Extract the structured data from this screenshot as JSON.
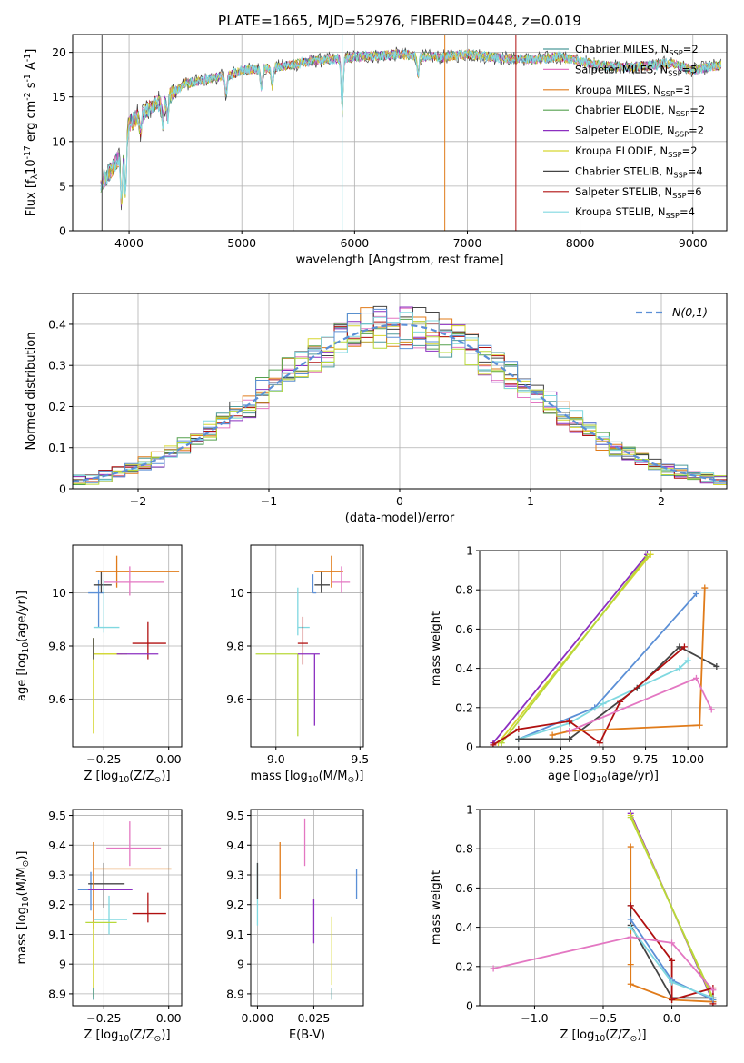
{
  "figure": {
    "title": "PLATE=1665, MJD=52976, FIBERID=0448, z=0.019"
  },
  "models": [
    {
      "name": "Chabrier MILES, N$_{SSP}$=2",
      "color": "#4e9a9a"
    },
    {
      "name": "Salpeter MILES, N$_{SSP}$=5",
      "color": "#e377c2"
    },
    {
      "name": "Kroupa MILES, N$_{SSP}$=3",
      "color": "#e07b1a"
    },
    {
      "name": "Chabrier ELODIE, N$_{SSP}$=2",
      "color": "#55a14f"
    },
    {
      "name": "Salpeter ELODIE, N$_{SSP}$=2",
      "color": "#8c2fc0"
    },
    {
      "name": "Kroupa ELODIE, N$_{SSP}$=2",
      "color": "#d6d630"
    },
    {
      "name": "Chabrier STELIB, N$_{SSP}$=4",
      "color": "#444444"
    },
    {
      "name": "Salpeter STELIB, N$_{SSP}$=6",
      "color": "#b01010"
    },
    {
      "name": "Kroupa STELIB, N$_{SSP}$=4",
      "color": "#80d8e0"
    }
  ],
  "chart_data": [
    {
      "id": "spectrum",
      "type": "line",
      "xlabel": "wavelength [Angstrom, rest frame]",
      "ylabel": "Flux [f$_\\lambda$10$^{-17}$ erg cm$^{-2}$ s$^{-1}$ A$^{-1}$]",
      "xlim": [
        3500,
        9300
      ],
      "ylim": [
        0,
        22
      ],
      "xticks": [
        4000,
        5000,
        6000,
        7000,
        8000,
        9000
      ],
      "yticks": [
        0,
        5,
        10,
        15,
        20
      ],
      "legend": "top-right",
      "continuum": {
        "x": [
          3750,
          3800,
          3900,
          3950,
          4000,
          4100,
          4200,
          4300,
          4400,
          4500,
          4700,
          4900,
          5000,
          5200,
          5400,
          5600,
          5800,
          6000,
          6200,
          6400,
          6600,
          6800,
          7000,
          7200,
          7400,
          7600,
          7800,
          8000,
          8200,
          8400,
          8600,
          8800,
          9000,
          9200
        ],
        "y": [
          5.0,
          6.0,
          8.0,
          9.5,
          12.0,
          13.0,
          14.0,
          14.5,
          15.5,
          16.5,
          17.0,
          17.5,
          18.0,
          18.2,
          18.5,
          19.0,
          19.2,
          19.5,
          19.6,
          19.8,
          19.5,
          19.5,
          19.8,
          19.5,
          19.3,
          19.2,
          19.5,
          19.0,
          18.5,
          18.3,
          18.5,
          18.8,
          18.0,
          18.5
        ]
      },
      "absorption_lines": [
        3934,
        3969,
        4102,
        4300,
        4340,
        4861,
        5175,
        5270,
        5890,
        6563
      ]
    },
    {
      "id": "residuals",
      "type": "bar",
      "xlabel": "(data-model)/error",
      "ylabel": "Normed distribution",
      "xlim": [
        -2.5,
        2.5
      ],
      "ylim": [
        0,
        0.475
      ],
      "xticks": [
        -2,
        -1,
        0,
        1,
        2
      ],
      "yticks": [
        0.0,
        0.1,
        0.2,
        0.3,
        0.4
      ],
      "bin_width": 0.1,
      "curve_label": "$\\mathcal{N}(0,1)$",
      "curve_color": "#5b8fd6",
      "hist_colors": [
        "#4e9a9a",
        "#e377c2",
        "#e07b1a",
        "#55a14f",
        "#8c2fc0",
        "#d6d630",
        "#444444",
        "#b01010",
        "#80d8e0",
        "#5b8fd6",
        "#b8d83a"
      ]
    },
    {
      "id": "z-age",
      "type": "scatter",
      "xlabel": "Z [log$_{10}$($Z/Z_\\odot$)]",
      "ylabel": "age  [log$_{10}$($age/yr$)]",
      "xlim": [
        -0.37,
        0.05
      ],
      "ylim": [
        9.42,
        10.18
      ],
      "xticks": [
        -0.25,
        0.0
      ],
      "xticklabels": [
        "−0.25",
        "0.00"
      ],
      "yticks": [
        9.6,
        9.8,
        10.0
      ],
      "points": [
        {
          "x": -0.27,
          "y": 10.0,
          "xerr": [
            0.04,
            0.02
          ],
          "yerr": [
            0.13,
            0.05
          ],
          "color": "#5b8fd6"
        },
        {
          "x": -0.26,
          "y": 10.03,
          "xerr": [
            0.03,
            0.04
          ],
          "yerr": [
            0.03,
            0.05
          ],
          "color": "#444444"
        },
        {
          "x": -0.2,
          "y": 10.08,
          "xerr": [
            0.08,
            0.24
          ],
          "yerr": [
            0.06,
            0.06
          ],
          "color": "#e07b1a"
        },
        {
          "x": -0.15,
          "y": 10.04,
          "xerr": [
            0.1,
            0.13
          ],
          "yerr": [
            0.05,
            0.06
          ],
          "color": "#e377c2"
        },
        {
          "x": -0.25,
          "y": 9.87,
          "xerr": [
            0.04,
            0.06
          ],
          "yerr": [
            0.02,
            0.18
          ],
          "color": "#80d8e0"
        },
        {
          "x": -0.08,
          "y": 9.81,
          "xerr": [
            0.06,
            0.07
          ],
          "yerr": [
            0.06,
            0.08
          ],
          "color": "#b01010"
        },
        {
          "x": -0.25,
          "y": 9.77,
          "xerr": [
            0.04,
            0.09
          ],
          "yerr": [
            0.0,
            0.0
          ],
          "color": "#b8d83a"
        },
        {
          "x": -0.25,
          "y": 9.77,
          "xerr": [
            0.04,
            0.07
          ],
          "yerr": [
            0.0,
            0.0
          ],
          "color": "#d6d630"
        },
        {
          "x": -0.29,
          "y": 9.78,
          "xerr": [
            0.0,
            0.0
          ],
          "yerr": [
            0.31,
            0.05
          ],
          "color": "#d6d630"
        },
        {
          "x": -0.29,
          "y": 9.75,
          "xerr": [
            0.0,
            0.0
          ],
          "yerr": [
            0.0,
            0.08
          ],
          "color": "#444444"
        },
        {
          "x": -0.1,
          "y": 9.77,
          "xerr": [
            0.1,
            0.06
          ],
          "yerr": [
            0.0,
            0.0
          ],
          "color": "#8c2fc0"
        }
      ]
    },
    {
      "id": "mass-age",
      "type": "scatter",
      "xlabel": "mass [log$_{10}$($M/M_\\odot$)]",
      "ylabel": "",
      "xlim": [
        8.85,
        9.52
      ],
      "ylim": [
        9.42,
        10.18
      ],
      "xticks": [
        9.0,
        9.5
      ],
      "xticklabels": [
        "9.0",
        "9.5"
      ],
      "yticks": [
        9.6,
        9.8,
        10.0
      ],
      "points": [
        {
          "x": 9.22,
          "y": 10.0,
          "xerr": [
            0.0,
            0.02
          ],
          "yerr": [
            0.0,
            0.07
          ],
          "color": "#5b8fd6"
        },
        {
          "x": 9.27,
          "y": 10.03,
          "xerr": [
            0.04,
            0.05
          ],
          "yerr": [
            0.03,
            0.05
          ],
          "color": "#444444"
        },
        {
          "x": 9.33,
          "y": 10.08,
          "xerr": [
            0.1,
            0.07
          ],
          "yerr": [
            0.06,
            0.06
          ],
          "color": "#e07b1a"
        },
        {
          "x": 9.39,
          "y": 10.04,
          "xerr": [
            0.06,
            0.05
          ],
          "yerr": [
            0.04,
            0.06
          ],
          "color": "#e377c2"
        },
        {
          "x": 9.13,
          "y": 9.87,
          "xerr": [
            0.0,
            0.07
          ],
          "yerr": [
            0.03,
            0.15
          ],
          "color": "#80d8e0"
        },
        {
          "x": 9.16,
          "y": 9.81,
          "xerr": [
            0.03,
            0.03
          ],
          "yerr": [
            0.08,
            0.1
          ],
          "color": "#b01010"
        },
        {
          "x": 9.13,
          "y": 9.77,
          "xerr": [
            0.25,
            0.0
          ],
          "yerr": [
            0.31,
            0.0
          ],
          "color": "#b8d83a"
        },
        {
          "x": 9.23,
          "y": 9.77,
          "xerr": [
            0.1,
            0.03
          ],
          "yerr": [
            0.27,
            0.0
          ],
          "color": "#8c2fc0"
        }
      ]
    },
    {
      "id": "age-weight",
      "type": "line",
      "xlabel": "age  [log$_{10}$($age/yr$)]",
      "ylabel": "mass weight",
      "xlim": [
        8.77,
        10.23
      ],
      "ylim": [
        0.0,
        1.0
      ],
      "xticks": [
        9.0,
        9.25,
        9.5,
        9.75,
        10.0
      ],
      "xticklabels": [
        "9.00",
        "9.25",
        "9.50",
        "9.75",
        "10.00"
      ],
      "yticks": [
        0.0,
        0.2,
        0.4,
        0.6,
        0.8,
        1.0
      ],
      "grid": true,
      "series": [
        {
          "color": "#8c2fc0",
          "x": [
            8.85,
            9.76
          ],
          "y": [
            0.02,
            0.98
          ]
        },
        {
          "color": "#d6d630",
          "x": [
            8.88,
            9.78
          ],
          "y": [
            0.02,
            0.98
          ]
        },
        {
          "color": "#b8d83a",
          "x": [
            8.9,
            9.76
          ],
          "y": [
            0.02,
            0.97
          ]
        },
        {
          "color": "#5b8fd6",
          "x": [
            9.0,
            9.45,
            10.05
          ],
          "y": [
            0.04,
            0.2,
            0.78
          ]
        },
        {
          "color": "#80d8e0",
          "x": [
            9.0,
            9.3,
            9.5,
            9.95,
            10.0
          ],
          "y": [
            0.04,
            0.12,
            0.22,
            0.4,
            0.44
          ]
        },
        {
          "color": "#444444",
          "x": [
            9.0,
            9.3,
            9.7,
            9.95,
            10.17
          ],
          "y": [
            0.04,
            0.04,
            0.3,
            0.51,
            0.41
          ]
        },
        {
          "color": "#b01010",
          "x": [
            8.85,
            9.0,
            9.3,
            9.48,
            9.6,
            9.98
          ],
          "y": [
            0.01,
            0.09,
            0.13,
            0.02,
            0.23,
            0.51
          ]
        },
        {
          "color": "#e07b1a",
          "x": [
            9.2,
            9.3,
            10.07,
            10.1
          ],
          "y": [
            0.06,
            0.08,
            0.11,
            0.81
          ]
        },
        {
          "color": "#e377c2",
          "x": [
            9.3,
            10.05,
            10.14
          ],
          "y": [
            0.08,
            0.35,
            0.19
          ]
        }
      ]
    },
    {
      "id": "z-mass",
      "type": "scatter",
      "xlabel": "Z [log$_{10}$($Z/Z_\\odot$)]",
      "ylabel": "mass [log$_{10}$($M/M_\\odot$)]",
      "xlim": [
        -0.37,
        0.05
      ],
      "ylim": [
        8.86,
        9.52
      ],
      "xticks": [
        -0.25,
        0.0
      ],
      "xticklabels": [
        "−0.25",
        "0.00"
      ],
      "yticks": [
        8.9,
        9.0,
        9.1,
        9.2,
        9.3,
        9.4,
        9.5
      ],
      "points": [
        {
          "x": -0.3,
          "y": 9.25,
          "xerr": [
            0.05,
            0.1
          ],
          "yerr": [
            0.07,
            0.06
          ],
          "color": "#5b8fd6"
        },
        {
          "x": -0.25,
          "y": 9.27,
          "xerr": [
            0.06,
            0.08
          ],
          "yerr": [
            0.08,
            0.07
          ],
          "color": "#444444"
        },
        {
          "x": -0.29,
          "y": 9.32,
          "xerr": [
            0.0,
            0.3
          ],
          "yerr": [
            0.2,
            0.09
          ],
          "color": "#e07b1a"
        },
        {
          "x": -0.15,
          "y": 9.39,
          "xerr": [
            0.09,
            0.12
          ],
          "yerr": [
            0.06,
            0.09
          ],
          "color": "#e377c2"
        },
        {
          "x": -0.24,
          "y": 9.25,
          "xerr": [
            0.07,
            0.1
          ],
          "yerr": [
            0.0,
            0.0
          ],
          "color": "#8c2fc0"
        },
        {
          "x": -0.23,
          "y": 9.15,
          "xerr": [
            0.06,
            0.07
          ],
          "yerr": [
            0.05,
            0.08
          ],
          "color": "#80d8e0"
        },
        {
          "x": -0.08,
          "y": 9.17,
          "xerr": [
            0.06,
            0.07
          ],
          "yerr": [
            0.03,
            0.07
          ],
          "color": "#b01010"
        },
        {
          "x": -0.25,
          "y": 9.14,
          "xerr": [
            0.07,
            0.05
          ],
          "yerr": [
            0.0,
            0.0
          ],
          "color": "#b8d83a"
        },
        {
          "x": -0.29,
          "y": 9.14,
          "xerr": [
            0.0,
            0.0
          ],
          "yerr": [
            0.25,
            0.0
          ],
          "color": "#d6d630"
        },
        {
          "x": -0.29,
          "y": 8.92,
          "xerr": [
            0.0,
            0.0
          ],
          "yerr": [
            0.04,
            0.0
          ],
          "color": "#4e9a9a"
        }
      ]
    },
    {
      "id": "ebv-mass",
      "type": "scatter",
      "xlabel": "E(B-V)",
      "ylabel": "",
      "xlim": [
        -0.003,
        0.047
      ],
      "ylim": [
        8.86,
        9.52
      ],
      "xticks": [
        0.0,
        0.025
      ],
      "xticklabels": [
        "0.000",
        "0.025"
      ],
      "yticks": [
        8.9,
        9.0,
        9.1,
        9.2,
        9.3,
        9.4,
        9.5
      ],
      "points": [
        {
          "x": 0.0,
          "y": 9.25,
          "xerr": [
            0.0,
            0.0
          ],
          "yerr": [
            0.12,
            0.09
          ],
          "color": "#80d8e0"
        },
        {
          "x": 0.0,
          "y": 9.27,
          "xerr": [
            0.0,
            0.0
          ],
          "yerr": [
            0.05,
            0.07
          ],
          "color": "#444444"
        },
        {
          "x": 0.01,
          "y": 9.32,
          "xerr": [
            0.0,
            0.0
          ],
          "yerr": [
            0.1,
            0.09
          ],
          "color": "#e07b1a"
        },
        {
          "x": 0.021,
          "y": 9.41,
          "xerr": [
            0.0,
            0.0
          ],
          "yerr": [
            0.08,
            0.08
          ],
          "color": "#e377c2"
        },
        {
          "x": 0.025,
          "y": 9.15,
          "xerr": [
            0.0,
            0.0
          ],
          "yerr": [
            0.08,
            0.07
          ],
          "color": "#8c2fc0"
        },
        {
          "x": 0.033,
          "y": 9.1,
          "xerr": [
            0.0,
            0.0
          ],
          "yerr": [
            0.17,
            0.06
          ],
          "color": "#d6d630"
        },
        {
          "x": 0.033,
          "y": 8.92,
          "xerr": [
            0.0,
            0.0
          ],
          "yerr": [
            0.04,
            0.0
          ],
          "color": "#4e9a9a"
        },
        {
          "x": 0.044,
          "y": 9.27,
          "xerr": [
            0.0,
            0.0
          ],
          "yerr": [
            0.05,
            0.05
          ],
          "color": "#5b8fd6"
        }
      ]
    },
    {
      "id": "z-weight",
      "type": "line",
      "xlabel": "Z [log$_{10}$($Z/Z_\\odot$)]",
      "ylabel": "mass weight",
      "xlim": [
        -1.4,
        0.4
      ],
      "ylim": [
        0.0,
        1.0
      ],
      "xticks": [
        -1.0,
        -0.5,
        0.0
      ],
      "xticklabels": [
        "−1.0",
        "−0.5",
        "0.0"
      ],
      "yticks": [
        0.0,
        0.2,
        0.4,
        0.6,
        0.8,
        1.0
      ],
      "grid": true,
      "series": [
        {
          "color": "#8c2fc0",
          "x": [
            -0.3,
            0.3
          ],
          "y": [
            0.98,
            0.02
          ]
        },
        {
          "color": "#d6d630",
          "x": [
            -0.3,
            0.3
          ],
          "y": [
            0.97,
            0.03
          ]
        },
        {
          "color": "#b8d83a",
          "x": [
            -0.3,
            0.3
          ],
          "y": [
            0.96,
            0.04
          ]
        },
        {
          "color": "#e07b1a",
          "x": [
            -0.3,
            -0.3,
            -0.3,
            0.0,
            0.3
          ],
          "y": [
            0.81,
            0.21,
            0.11,
            0.03,
            0.02
          ]
        },
        {
          "color": "#444444",
          "x": [
            -0.3,
            -0.3,
            0.0,
            0.3
          ],
          "y": [
            0.51,
            0.41,
            0.04,
            0.04
          ]
        },
        {
          "color": "#b01010",
          "x": [
            -0.3,
            0.0,
            0.0,
            0.3,
            0.3
          ],
          "y": [
            0.51,
            0.23,
            0.03,
            0.09,
            0.01
          ]
        },
        {
          "color": "#5b8fd6",
          "x": [
            -0.3,
            0.0,
            0.3
          ],
          "y": [
            0.44,
            0.13,
            0.03
          ]
        },
        {
          "color": "#80d8e0",
          "x": [
            -0.3,
            0.0,
            0.3
          ],
          "y": [
            0.4,
            0.12,
            0.04
          ]
        },
        {
          "color": "#e377c2",
          "x": [
            -1.3,
            -0.3,
            0.0,
            0.3
          ],
          "y": [
            0.19,
            0.35,
            0.32,
            0.08
          ]
        }
      ]
    }
  ]
}
